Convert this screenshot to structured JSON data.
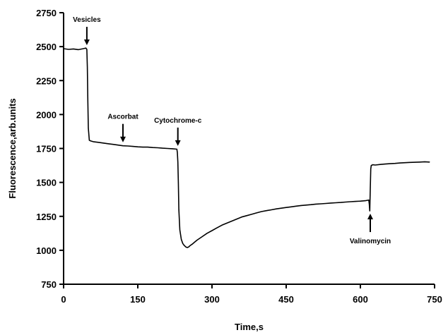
{
  "chart_data": {
    "type": "line",
    "title": "",
    "xlabel": "Time,s",
    "ylabel": "Fluorescence,arb.units",
    "xlim": [
      0,
      750
    ],
    "ylim": [
      750,
      2750
    ],
    "x_ticks": [
      0,
      150,
      300,
      450,
      600,
      750
    ],
    "y_ticks": [
      750,
      1000,
      1250,
      1500,
      1750,
      2000,
      2250,
      2500,
      2750
    ],
    "grid": false,
    "legend": "none",
    "line_color": "#000000",
    "series": [
      {
        "x": [
          0,
          10,
          20,
          30,
          40,
          45,
          47,
          48,
          49,
          50,
          52,
          55,
          60,
          70,
          80,
          90,
          100,
          110,
          120,
          130,
          140,
          150,
          160,
          170,
          180,
          190,
          200,
          210,
          220,
          229,
          230,
          231,
          232,
          233,
          235,
          238,
          241,
          244,
          247,
          250,
          253,
          256,
          260,
          265,
          270,
          280,
          290,
          300,
          310,
          320,
          330,
          340,
          350,
          360,
          370,
          380,
          390,
          400,
          410,
          420,
          430,
          440,
          450,
          460,
          470,
          480,
          490,
          500,
          510,
          520,
          530,
          540,
          550,
          560,
          570,
          580,
          590,
          600,
          610,
          617,
          618,
          619,
          620,
          621,
          622,
          625,
          630,
          640,
          650,
          660,
          670,
          680,
          690,
          700,
          710,
          720,
          730,
          740
        ],
        "y": [
          2485,
          2480,
          2483,
          2478,
          2485,
          2490,
          2480,
          2350,
          2100,
          1900,
          1810,
          1805,
          1800,
          1795,
          1790,
          1785,
          1780,
          1775,
          1770,
          1768,
          1765,
          1762,
          1760,
          1760,
          1757,
          1755,
          1752,
          1750,
          1748,
          1745,
          1720,
          1650,
          1500,
          1300,
          1150,
          1080,
          1050,
          1035,
          1025,
          1020,
          1025,
          1035,
          1045,
          1060,
          1075,
          1100,
          1125,
          1145,
          1165,
          1185,
          1200,
          1215,
          1230,
          1245,
          1255,
          1265,
          1275,
          1285,
          1292,
          1298,
          1305,
          1310,
          1315,
          1320,
          1325,
          1330,
          1333,
          1336,
          1340,
          1342,
          1345,
          1348,
          1350,
          1352,
          1355,
          1358,
          1360,
          1362,
          1365,
          1370,
          1340,
          1290,
          1450,
          1600,
          1625,
          1630,
          1628,
          1632,
          1635,
          1638,
          1640,
          1643,
          1645,
          1647,
          1648,
          1650,
          1652,
          1650
        ]
      }
    ],
    "annotations": [
      {
        "text": "Vesicles",
        "x": 47,
        "y": 2490,
        "arrow": "down"
      },
      {
        "text": "Ascorbat",
        "x": 120,
        "y": 1775,
        "arrow": "down"
      },
      {
        "text": "Cytochrome-c",
        "x": 231,
        "y": 1748,
        "arrow": "down"
      },
      {
        "text": "Valinomycin",
        "x": 620,
        "y": 1290,
        "arrow": "up"
      }
    ]
  }
}
